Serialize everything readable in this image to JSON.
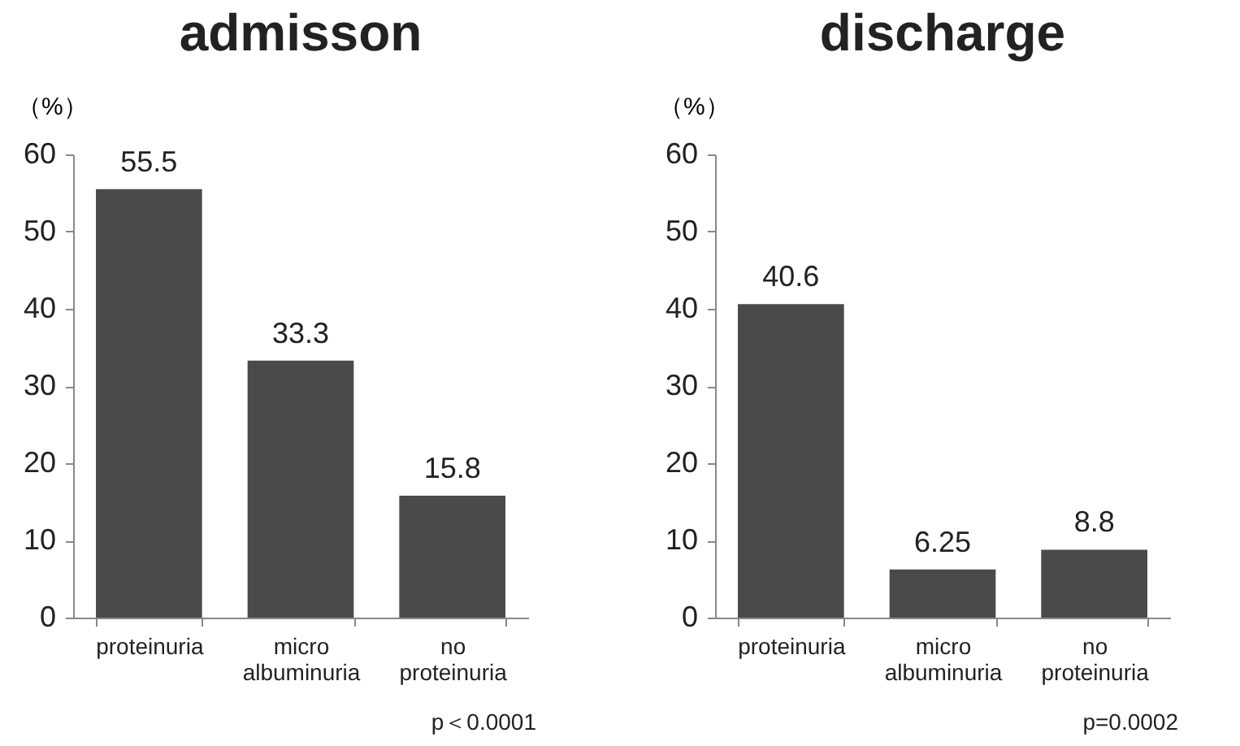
{
  "chart_data": [
    {
      "type": "bar",
      "title": "admisson",
      "ylabel": "（%）",
      "categories": [
        "proteinuria",
        "micro albuminuria",
        "no proteinuria"
      ],
      "values": [
        55.5,
        33.3,
        15.8
      ],
      "color": "#4a4a4a",
      "ylim": [
        0,
        60
      ],
      "yticks": [
        0,
        10,
        20,
        30,
        40,
        50,
        60
      ],
      "data_labels": true,
      "grid": false,
      "annotations": [
        "p＜0.0001"
      ]
    },
    {
      "type": "bar",
      "title": "discharge",
      "ylabel": "（%）",
      "categories": [
        "proteinuria",
        "micro albuminuria",
        "no proteinuria"
      ],
      "values": [
        40.6,
        6.25,
        8.8
      ],
      "color": "#4a4a4a",
      "ylim": [
        0,
        60
      ],
      "yticks": [
        0,
        10,
        20,
        30,
        40,
        50,
        60
      ],
      "data_labels": true,
      "grid": false,
      "annotations": [
        "p=0.0002"
      ]
    }
  ]
}
